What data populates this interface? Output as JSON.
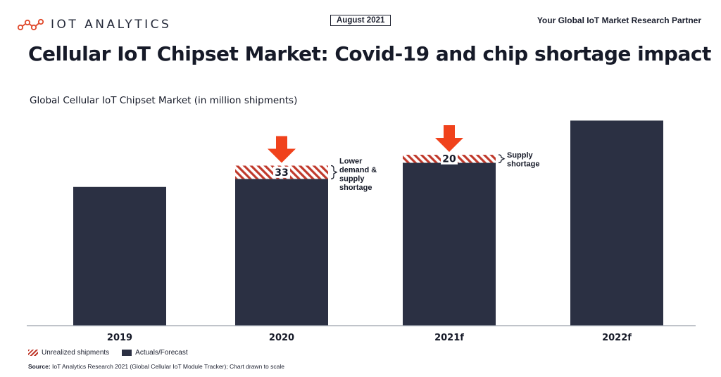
{
  "header": {
    "logo_text": "IOT ANALYTICS",
    "date_badge": "August 2021",
    "tagline": "Your Global IoT Market Research Partner",
    "title": "Cellular IoT Chipset Market: Covid-19 and chip shortage impact"
  },
  "colors": {
    "actual": "#2b3043",
    "unrealized": "#c0392b",
    "arrow": "#f0421c",
    "logo_accent": "#e0492b"
  },
  "chart_data": {
    "type": "bar",
    "title": "Global Cellular IoT Chipset Market (in million shipments)",
    "categories": [
      "2019",
      "2020",
      "2021f",
      "2022f"
    ],
    "series": [
      {
        "name": "Actuals/Forecast",
        "values": [
          345,
          365,
          405,
          510
        ]
      },
      {
        "name": "Unrealized shipments",
        "values": [
          null,
          33,
          20,
          null
        ]
      }
    ],
    "data_labels": [
      null,
      "33",
      "20",
      null
    ],
    "annotations": [
      {
        "category": "2020",
        "text": [
          "Lower",
          "demand &",
          "supply",
          "shortage"
        ]
      },
      {
        "category": "2021f",
        "text": [
          "Supply",
          "shortage"
        ]
      }
    ],
    "arrows_on": [
      "2020",
      "2021f"
    ],
    "ylim": [
      0,
      530
    ],
    "yaxis_visible": false,
    "grid": false,
    "legend_position": "bottom-left"
  },
  "legend": {
    "unrealized_label": "Unrealized shipments",
    "actual_label": "Actuals/Forecast"
  },
  "source": {
    "label": "Source:",
    "text": "IoT Analytics Research 2021 (Global Cellular IoT Module Tracker); Chart drawn to scale"
  }
}
